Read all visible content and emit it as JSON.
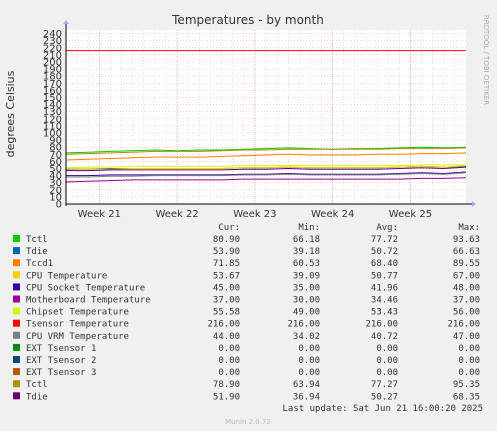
{
  "chart_data": {
    "type": "line",
    "title": "Temperatures - by month",
    "ylabel": "degrees Celsius",
    "side_label": "RRDTOOL / TOBI OETIKER",
    "ylim": [
      0,
      245
    ],
    "yticks": [
      0,
      10,
      20,
      30,
      40,
      50,
      60,
      70,
      80,
      90,
      100,
      110,
      120,
      130,
      140,
      150,
      160,
      170,
      180,
      190,
      200,
      210,
      220,
      230,
      240
    ],
    "x_range": [
      0,
      36
    ],
    "xticks": [
      {
        "label": "Week 21",
        "x": 3
      },
      {
        "label": "Week 22",
        "x": 10
      },
      {
        "label": "Week 23",
        "x": 17
      },
      {
        "label": "Week 24",
        "x": 24
      },
      {
        "label": "Week 25",
        "x": 31
      }
    ],
    "grid": true,
    "x": [
      0,
      2,
      4,
      6,
      8,
      10,
      12,
      14,
      16,
      18,
      20,
      22,
      24,
      26,
      28,
      30,
      32,
      34,
      36
    ],
    "series": [
      {
        "name": "Tctl",
        "color": "#00cc00",
        "values": [
          72,
          73,
          74,
          75,
          76,
          75,
          76,
          76,
          77,
          78,
          79,
          78,
          77,
          78,
          78,
          79,
          80,
          79,
          80
        ]
      },
      {
        "name": "Tdie",
        "color": "#0066b3",
        "values": [
          49,
          49,
          50,
          50,
          50,
          50,
          50,
          50,
          51,
          51,
          52,
          51,
          51,
          51,
          51,
          52,
          53,
          52,
          53
        ]
      },
      {
        "name": "Tccd1",
        "color": "#ff8000",
        "values": [
          62,
          63,
          64,
          65,
          66,
          66,
          66,
          67,
          68,
          69,
          70,
          69,
          69,
          69,
          70,
          70,
          71,
          71,
          72
        ]
      },
      {
        "name": "CPU Temperature",
        "color": "#ffcc00",
        "values": [
          48,
          49,
          49,
          50,
          50,
          50,
          50,
          50,
          51,
          51,
          52,
          51,
          51,
          51,
          51,
          52,
          53,
          52,
          54
        ]
      },
      {
        "name": "CPU Socket Temperature",
        "color": "#330099",
        "values": [
          40,
          40,
          41,
          41,
          41,
          41,
          41,
          41,
          42,
          42,
          43,
          42,
          42,
          42,
          42,
          43,
          44,
          43,
          45
        ]
      },
      {
        "name": "Motherboard Temperature",
        "color": "#990099",
        "values": [
          31,
          32,
          33,
          34,
          34,
          34,
          34,
          34,
          35,
          35,
          35,
          35,
          35,
          35,
          35,
          35,
          36,
          36,
          37
        ]
      },
      {
        "name": "Chipset Temperature",
        "color": "#ccff00",
        "values": [
          51,
          52,
          52,
          53,
          53,
          53,
          53,
          53,
          54,
          54,
          54,
          54,
          54,
          54,
          54,
          54,
          55,
          55,
          55
        ]
      },
      {
        "name": "Tsensor Temperature",
        "color": "#ff0000",
        "values": [
          216,
          216,
          216,
          216,
          216,
          216,
          216,
          216,
          216,
          216,
          216,
          216,
          216,
          216,
          216,
          216,
          216,
          216,
          216
        ]
      },
      {
        "name": "CPU VRM Temperature",
        "color": "#808080",
        "values": [
          38,
          38,
          39,
          39,
          40,
          40,
          40,
          40,
          41,
          41,
          42,
          41,
          41,
          41,
          41,
          42,
          43,
          42,
          44
        ]
      },
      {
        "name": "EXT Tsensor 1",
        "color": "#008f00",
        "values": [
          0,
          0,
          0,
          0,
          0,
          0,
          0,
          0,
          0,
          0,
          0,
          0,
          0,
          0,
          0,
          0,
          0,
          0,
          0
        ]
      },
      {
        "name": "EXT Tsensor 2",
        "color": "#00487d",
        "values": [
          0,
          0,
          0,
          0,
          0,
          0,
          0,
          0,
          0,
          0,
          0,
          0,
          0,
          0,
          0,
          0,
          0,
          0,
          0
        ]
      },
      {
        "name": "EXT Tsensor 3",
        "color": "#b35a00",
        "values": [
          0,
          0,
          0,
          0,
          0,
          0,
          0,
          0,
          0,
          0,
          0,
          0,
          0,
          0,
          0,
          0,
          0,
          0,
          0
        ]
      },
      {
        "name": "Tctl",
        "color": "#b38f00",
        "values": [
          70,
          71,
          72,
          73,
          74,
          74,
          74,
          75,
          76,
          76,
          77,
          77,
          77,
          77,
          77,
          78,
          78,
          78,
          79
        ]
      },
      {
        "name": "Tdie",
        "color": "#6b006b",
        "values": [
          47,
          47,
          48,
          48,
          48,
          48,
          48,
          48,
          49,
          49,
          50,
          49,
          49,
          49,
          49,
          50,
          51,
          50,
          52
        ]
      }
    ]
  },
  "legend": {
    "headers": [
      "Cur:",
      "Min:",
      "Avg:",
      "Max:"
    ],
    "rows": [
      {
        "label": "Tctl",
        "color": "#00cc00",
        "cur": "80.90",
        "min": "66.18",
        "avg": "77.72",
        "max": "93.63"
      },
      {
        "label": "Tdie",
        "color": "#0066b3",
        "cur": "53.90",
        "min": "39.18",
        "avg": "50.72",
        "max": "66.63"
      },
      {
        "label": "Tccd1",
        "color": "#ff8000",
        "cur": "71.85",
        "min": "60.53",
        "avg": "68.40",
        "max": "89.55"
      },
      {
        "label": "CPU Temperature",
        "color": "#ffcc00",
        "cur": "53.67",
        "min": "39.09",
        "avg": "50.77",
        "max": "67.00"
      },
      {
        "label": "CPU Socket Temperature",
        "color": "#330099",
        "cur": "45.00",
        "min": "35.00",
        "avg": "41.96",
        "max": "48.00"
      },
      {
        "label": "Motherboard Temperature",
        "color": "#990099",
        "cur": "37.00",
        "min": "30.00",
        "avg": "34.46",
        "max": "37.00"
      },
      {
        "label": "Chipset Temperature",
        "color": "#ccff00",
        "cur": "55.58",
        "min": "49.00",
        "avg": "53.43",
        "max": "56.00"
      },
      {
        "label": "Tsensor Temperature",
        "color": "#ff0000",
        "cur": "216.00",
        "min": "216.00",
        "avg": "216.00",
        "max": "216.00"
      },
      {
        "label": "CPU VRM Temperature",
        "color": "#808080",
        "cur": "44.00",
        "min": "34.02",
        "avg": "40.72",
        "max": "47.00"
      },
      {
        "label": "EXT Tsensor 1",
        "color": "#008f00",
        "cur": "0.00",
        "min": "0.00",
        "avg": "0.00",
        "max": "0.00"
      },
      {
        "label": "EXT Tsensor 2",
        "color": "#00487d",
        "cur": "0.00",
        "min": "0.00",
        "avg": "0.00",
        "max": "0.00"
      },
      {
        "label": "EXT Tsensor 3",
        "color": "#b35a00",
        "cur": "0.00",
        "min": "0.00",
        "avg": "0.00",
        "max": "0.00"
      },
      {
        "label": "Tctl",
        "color": "#b38f00",
        "cur": "78.90",
        "min": "63.94",
        "avg": "77.27",
        "max": "95.35"
      },
      {
        "label": "Tdie",
        "color": "#6b006b",
        "cur": "51.90",
        "min": "36.94",
        "avg": "50.27",
        "max": "68.35"
      }
    ]
  },
  "footer": {
    "last_update": "Last update: Sat Jun 21 16:00:20 2025",
    "version": "Munin 2.0.73"
  }
}
